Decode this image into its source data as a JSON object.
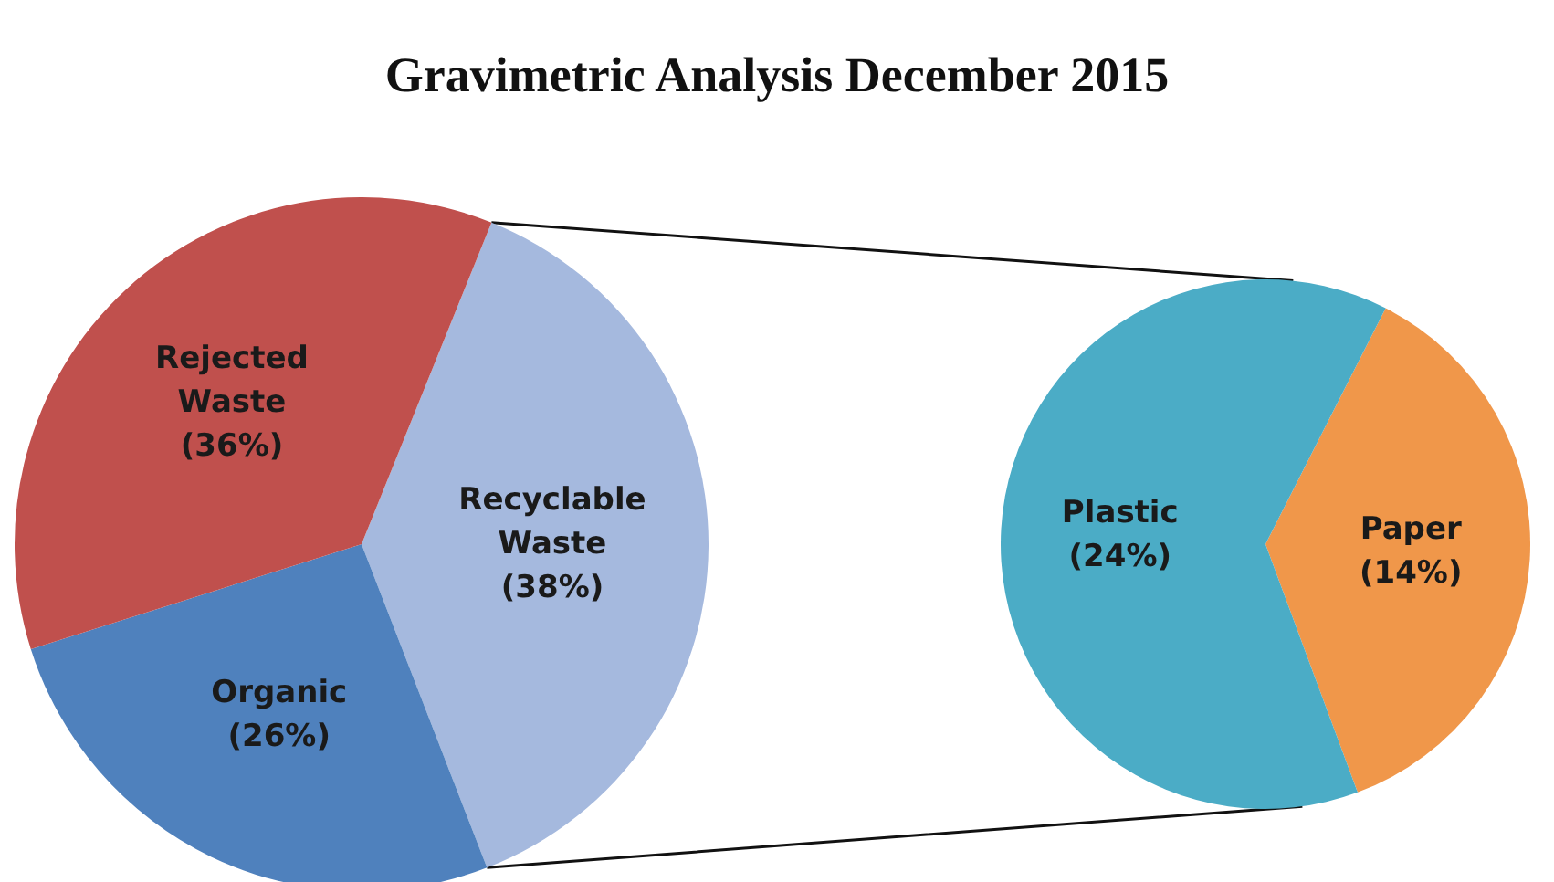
{
  "chart_data": [
    {
      "type": "pie",
      "title": "Gravimetric Analysis December 2015",
      "categories": [
        "Recyclable Waste",
        "Organic",
        "Rejected Waste"
      ],
      "values": [
        38,
        26,
        36
      ],
      "colors": [
        "#a5b9de",
        "#4f81bd",
        "#c0504d"
      ],
      "value_labels": [
        "(38%)",
        "(26%)",
        "(36%)"
      ],
      "legend": false
    },
    {
      "type": "pie",
      "categories": [
        "Paper",
        "Plastic"
      ],
      "values": [
        14,
        24
      ],
      "colors": [
        "#f0974a",
        "#4bacc6"
      ],
      "value_labels": [
        "(14%)",
        "(24%)"
      ],
      "legend": false
    }
  ]
}
